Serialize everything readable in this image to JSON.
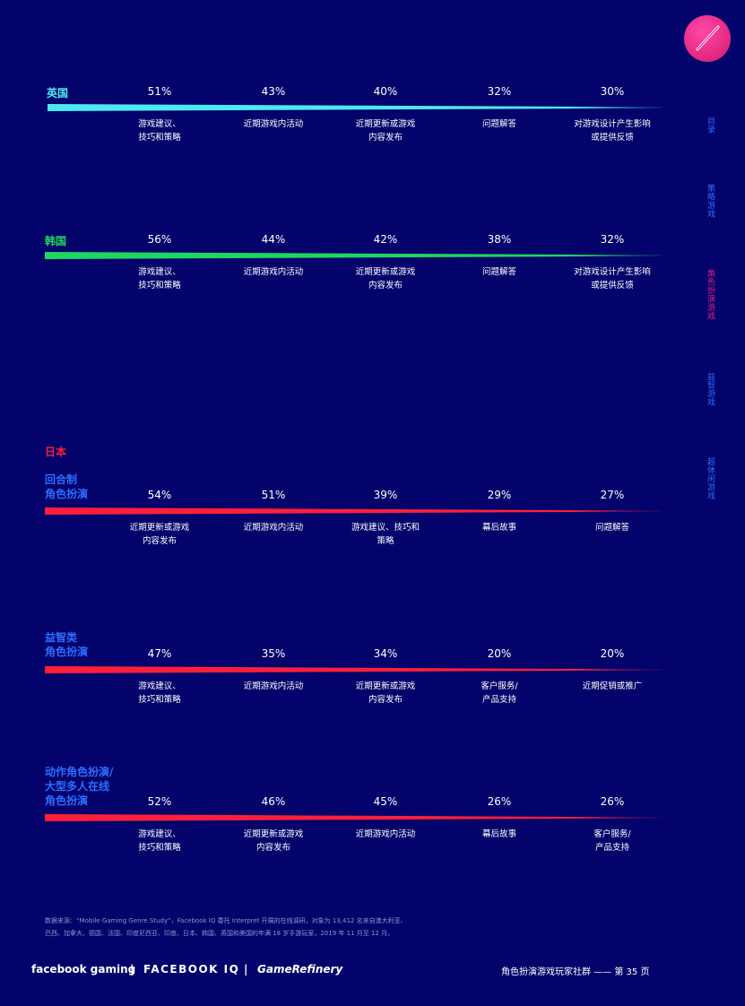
{
  "nav": {
    "items": [
      {
        "label": "目录",
        "active": false
      },
      {
        "label": "策略游戏",
        "active": false
      },
      {
        "label": "角色扮演游戏",
        "active": true
      },
      {
        "label": "益智游戏",
        "active": false
      },
      {
        "label": "超休闲游戏",
        "active": false
      }
    ]
  },
  "japan_header": "日本",
  "chart_data": [
    {
      "type": "bar",
      "title": "英国",
      "genre": "",
      "values": [
        51,
        43,
        40,
        32,
        30
      ],
      "value_labels": [
        "51%",
        "43%",
        "40%",
        "32%",
        "30%"
      ],
      "categories": [
        "游戏建议、\n技巧和策略",
        "近期游戏内活动",
        "近期更新或游戏\n内容发布",
        "问题解答",
        "对游戏设计产生影响\n或提供反馈"
      ],
      "color": "#4ee8f0"
    },
    {
      "type": "bar",
      "title": "韩国",
      "genre": "",
      "values": [
        56,
        44,
        42,
        38,
        32
      ],
      "value_labels": [
        "56%",
        "44%",
        "42%",
        "38%",
        "32%"
      ],
      "categories": [
        "游戏建议、\n技巧和策略",
        "近期游戏内活动",
        "近期更新或游戏\n内容发布",
        "问题解答",
        "对游戏设计产生影响\n或提供反馈"
      ],
      "color": "#1ed760"
    },
    {
      "type": "bar",
      "title": "",
      "genre": "回合制\n角色扮演",
      "values": [
        54,
        51,
        39,
        29,
        27
      ],
      "value_labels": [
        "54%",
        "51%",
        "39%",
        "29%",
        "27%"
      ],
      "categories": [
        "近期更新或游戏\n内容发布",
        "近期游戏内活动",
        "游戏建议、技巧和\n策略",
        "幕后故事",
        "问题解答"
      ],
      "color": "#ff1f3a"
    },
    {
      "type": "bar",
      "title": "",
      "genre": "益智类\n角色扮演",
      "values": [
        47,
        35,
        34,
        20,
        20
      ],
      "value_labels": [
        "47%",
        "35%",
        "34%",
        "20%",
        "20%"
      ],
      "categories": [
        "游戏建议、\n技巧和策略",
        "近期游戏内活动",
        "近期更新或游戏\n内容发布",
        "客户服务/\n产品支持",
        "近期促销或推广"
      ],
      "color": "#ff1f3a"
    },
    {
      "type": "bar",
      "title": "",
      "genre": "动作角色扮演/\n大型多人在线\n角色扮演",
      "values": [
        52,
        46,
        45,
        26,
        26
      ],
      "value_labels": [
        "52%",
        "46%",
        "45%",
        "26%",
        "26%"
      ],
      "categories": [
        "游戏建议、\n技巧和策略",
        "近期更新或游戏\n内容发布",
        "近期游戏内活动",
        "幕后故事",
        "客户服务/\n产品支持"
      ],
      "color": "#ff1f3a"
    }
  ],
  "source": "数据来源：“Mobile Gaming Genre Study”，Facebook IQ 委托 Interpret 开展的在线调研，对象为 13,412 名来自澳大利亚、\n巴西、加拿大、德国、法国、印度尼西亚、印度、日本、韩国、英国和美国的年满 18 岁手游玩家，2019 年 11 月至 12 月。",
  "footer": {
    "brand1": "facebook gaming",
    "sep": "|",
    "brand2": "FACEBOOK IQ",
    "brand3": "GameRefinery",
    "right": "角色扮演游戏玩家社群 —— 第 35 页"
  }
}
